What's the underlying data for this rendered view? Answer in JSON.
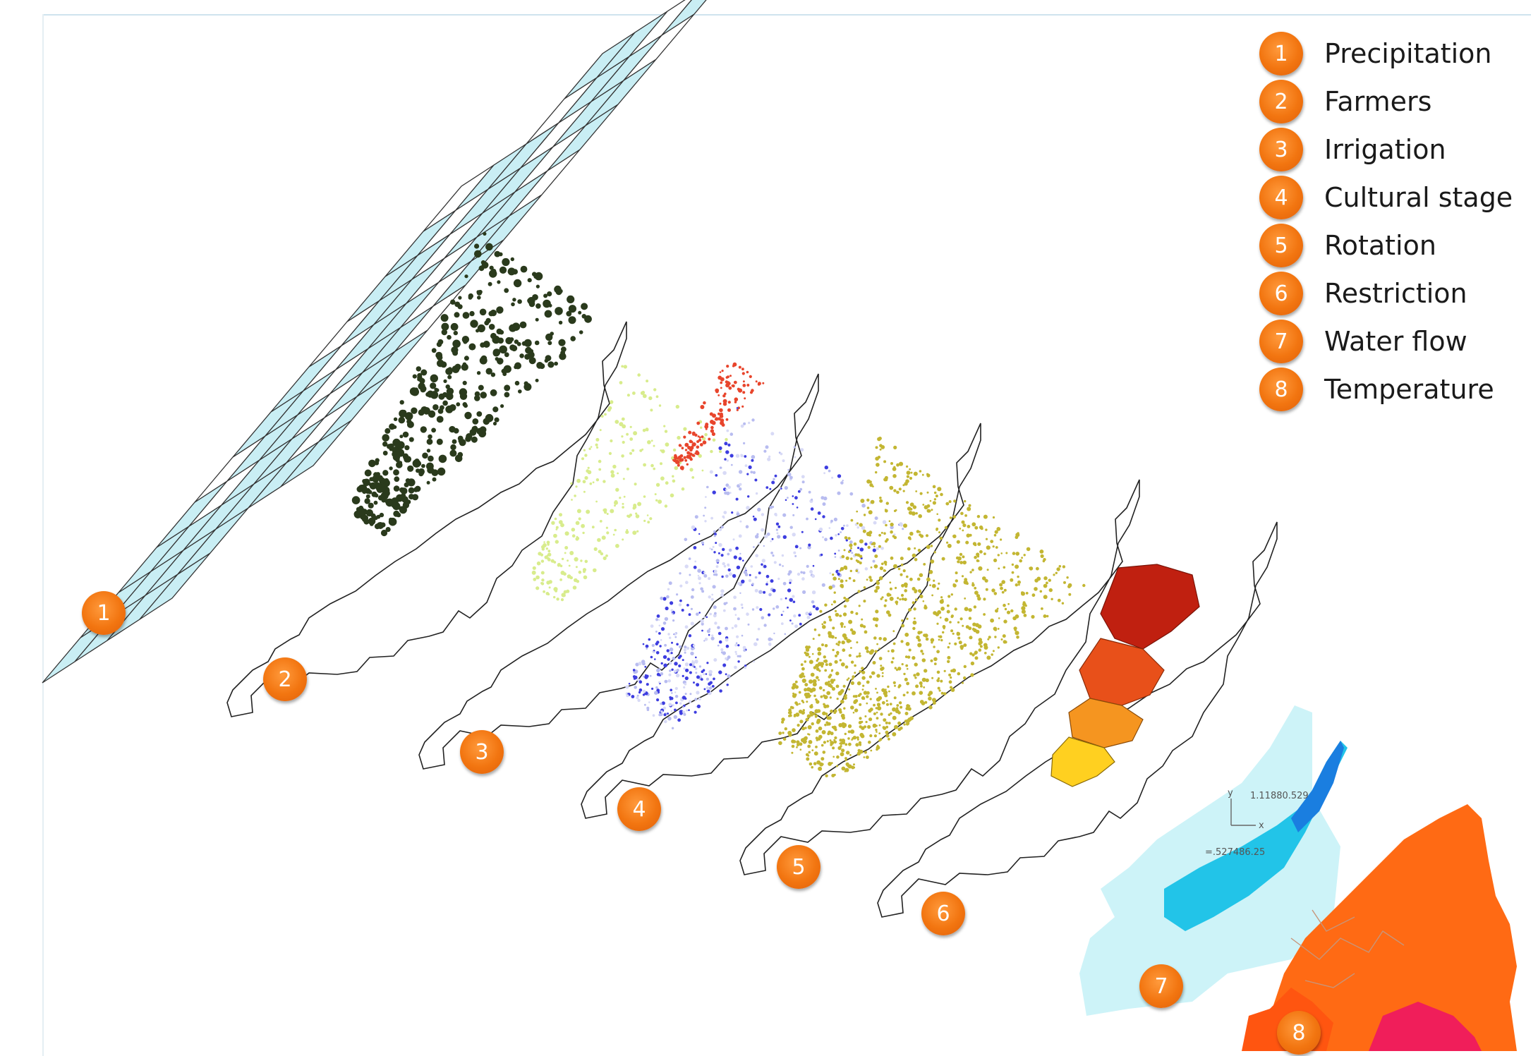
{
  "legend": [
    {
      "num": "1",
      "label": "Precipitation"
    },
    {
      "num": "2",
      "label": "Farmers"
    },
    {
      "num": "3",
      "label": "Irrigation"
    },
    {
      "num": "4",
      "label": "Cultural stage"
    },
    {
      "num": "5",
      "label": "Rotation"
    },
    {
      "num": "6",
      "label": "Restriction"
    },
    {
      "num": "7",
      "label": "Water flow"
    },
    {
      "num": "8",
      "label": "Temperature"
    }
  ],
  "map_labels": [
    "1",
    "2",
    "3",
    "4",
    "5",
    "6",
    "7",
    "8"
  ],
  "axis_readouts": {
    "y_axis": "y",
    "x_axis": "x",
    "coord_top": "1.11880.529",
    "coord_bottom": "=.527486.25"
  },
  "colors": {
    "grid_fill": "#c9eef4",
    "farmers": "#2a3a1c",
    "irrigation_red": "#e8452c",
    "irrigation_green": "#d8ec8c",
    "cultural_blue": "#3d3de0",
    "rotation": "#c3b632",
    "restriction": [
      "#c02010",
      "#e8501a",
      "#f59520",
      "#ffd020"
    ],
    "water_flow": [
      "#cdf3f8",
      "#22c4e8",
      "#1a7ee0"
    ],
    "temperature": [
      "#ff6a14",
      "#ff4010",
      "#f01e5a"
    ],
    "badge": "#f27510"
  }
}
